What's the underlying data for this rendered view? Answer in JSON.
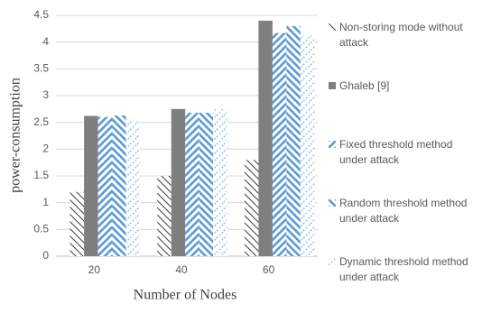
{
  "chart_data": {
    "type": "bar",
    "x_label": "Number of Nodes",
    "y_label": "power-consumption",
    "categories": [
      "20",
      "40",
      "60"
    ],
    "series": [
      {
        "name": "Non-storing mode without attack",
        "color": "#404040",
        "hatch": "thin-backslash",
        "values": [
          1.2,
          1.5,
          1.8
        ]
      },
      {
        "name": "Ghaleb [9]",
        "color": "#7f7f7f",
        "hatch": "solid",
        "values": [
          2.62,
          2.75,
          4.4
        ]
      },
      {
        "name": "Fixed threshold method under attack",
        "color": "#5b9bd5",
        "hatch": "wide-slash",
        "values": [
          2.6,
          2.68,
          4.17
        ]
      },
      {
        "name": "Random threshold method under attack",
        "color": "#5b9bd5",
        "hatch": "wide-backslash",
        "values": [
          2.63,
          2.68,
          4.3
        ]
      },
      {
        "name": "Dynamic threshold method under attack",
        "color": "#9dc3e6",
        "hatch": "dashed-slash",
        "values": [
          2.55,
          2.75,
          4.12
        ]
      }
    ],
    "ylim": [
      0,
      4.5
    ],
    "yticks": [
      0,
      0.5,
      1,
      1.5,
      2,
      2.5,
      3,
      3.5,
      4,
      4.5
    ],
    "grid": true
  }
}
